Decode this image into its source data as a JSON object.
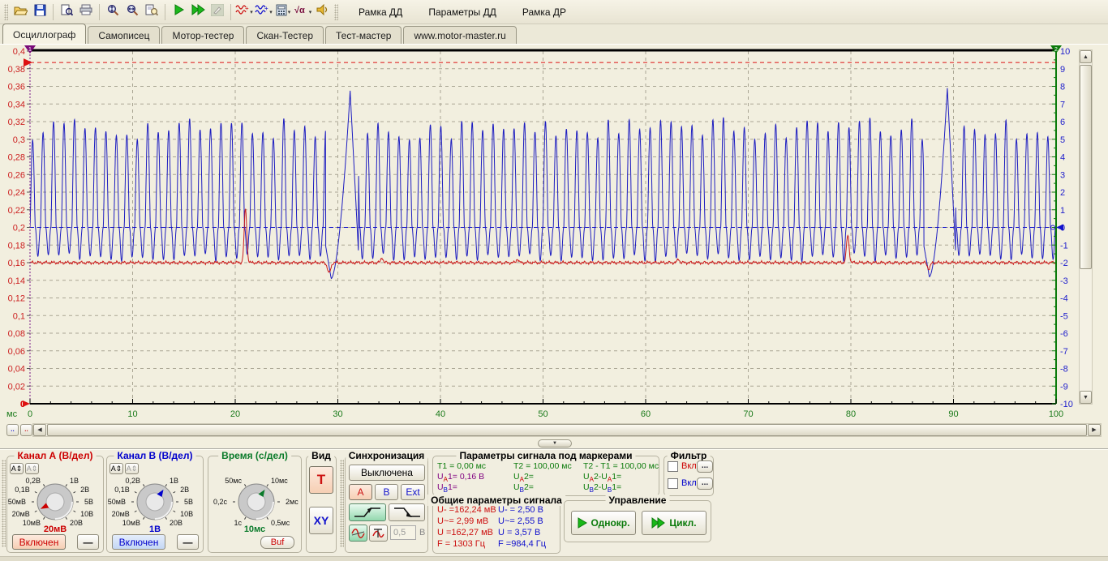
{
  "toolbar": {
    "buttons": [
      {
        "name": "open-button",
        "icon": "folder-open-icon"
      },
      {
        "name": "save-button",
        "icon": "save-icon"
      },
      {
        "sep": true
      },
      {
        "name": "print-preview-button",
        "icon": "print-preview-icon"
      },
      {
        "name": "print-button",
        "icon": "printer-icon"
      },
      {
        "sep": true
      },
      {
        "name": "zoom-vertical-button",
        "icon": "zoom-vertical-icon"
      },
      {
        "name": "zoom-horizontal-button",
        "icon": "zoom-horizontal-icon"
      },
      {
        "name": "page-search-button",
        "icon": "page-search-icon"
      },
      {
        "sep": true
      },
      {
        "name": "start-button",
        "icon": "play-icon"
      },
      {
        "name": "start-cycle-button",
        "icon": "play-double-icon"
      },
      {
        "name": "edit-button",
        "icon": "pencil-icon",
        "disabled": true
      },
      {
        "sep": true
      },
      {
        "name": "signal-a-menu-button",
        "icon": "wave-red-icon",
        "dropdown": true
      },
      {
        "name": "signal-b-menu-button",
        "icon": "wave-blue-icon",
        "dropdown": true
      },
      {
        "name": "calculator-menu-button",
        "icon": "calculator-icon",
        "dropdown": true
      },
      {
        "name": "math-menu-button",
        "icon": "sqrt-alpha-icon",
        "dropdown": true
      },
      {
        "name": "sound-button",
        "icon": "speaker-icon"
      }
    ],
    "menu_items": [
      "Рамка ДД",
      "Параметры ДД",
      "Рамка ДР"
    ]
  },
  "tabs": {
    "items": [
      "Осциллограф",
      "Самописец",
      "Мотор-тестер",
      "Скан-Тестер",
      "Тест-мастер",
      "www.motor-master.ru"
    ],
    "active_index": 0
  },
  "chart_data": {
    "type": "line",
    "x_axis": {
      "unit": "мс",
      "min": 0,
      "max": 100,
      "major_tick": 10,
      "minor_tick": 2,
      "color": "#1a7a1a",
      "labels": [
        "0",
        "10",
        "20",
        "30",
        "40",
        "50",
        "60",
        "70",
        "80",
        "90",
        "100"
      ]
    },
    "y_axis_left": {
      "min": 0,
      "max": 0.4,
      "step": 0.02,
      "color": "#cc2020",
      "labels": [
        "0,4",
        "0,38",
        "0,36",
        "0,34",
        "0,32",
        "0,3",
        "0,28",
        "0,26",
        "0,24",
        "0,22",
        "0,2",
        "0,18",
        "0,16",
        "0,14",
        "0,12",
        "0,1",
        "0,08",
        "0,06",
        "0,04",
        "0,02",
        "0"
      ]
    },
    "y_axis_right": {
      "min": -10,
      "max": 10,
      "step": 1,
      "color": "#2020cc",
      "labels": [
        "10",
        "9",
        "8",
        "7",
        "6",
        "5",
        "4",
        "3",
        "2",
        "1",
        "0",
        "-1",
        "-2",
        "-3",
        "-4",
        "-5",
        "-6",
        "-7",
        "-8",
        "-9",
        "-10"
      ]
    },
    "grid": {
      "h_step_left": 0.02,
      "v_step_ms": 10,
      "color": "#aaa694"
    },
    "ref_lines": [
      {
        "name": "trigger-level-line",
        "scale": "right",
        "y": 9.35,
        "color": "#dd1111"
      },
      {
        "name": "channel-b-zero-line",
        "scale": "right",
        "y": 0,
        "color": "#1111cc"
      }
    ],
    "markers": {
      "marker1": {
        "t": 0,
        "label": "1",
        "color": "#7a0b7a"
      },
      "marker2": {
        "t": 100,
        "label": "2",
        "color": "#0b7a0b"
      },
      "trigger_arrow": {
        "scale": "right",
        "y": 9.35,
        "color": "#dd1111"
      },
      "zero_a": {
        "scale": "left",
        "y": 0,
        "label": "0",
        "color": "#dd1111"
      },
      "zero_b": {
        "scale": "right",
        "y": 0,
        "color": "#1111cc"
      }
    },
    "series": [
      {
        "name": "channel-b",
        "color": "#1d1dc0",
        "scale": "right",
        "waveform": {
          "kind": "oscillation",
          "period_ms": 1.02,
          "peak": 5.6,
          "peak_jitter": 0.65,
          "trough": 1.45,
          "anomalies": [
            {
              "start": 28.8,
              "dip": -2.9,
              "rise_end": 31.2,
              "peak": 7.75,
              "end": 32.0
            },
            {
              "start": 87.1,
              "dip": -2.8,
              "rise_end": 89.4,
              "peak": 7.9,
              "end": 90.2
            }
          ]
        }
      },
      {
        "name": "channel-a",
        "color": "#cc1d1d",
        "scale": "right",
        "waveform": {
          "kind": "flat-noise",
          "base": -2.0,
          "noise": 0.07,
          "spikes": [
            {
              "t": 21.0,
              "v": 1.05,
              "w": 0.18
            },
            {
              "t": 79.7,
              "v": -0.45,
              "w": 0.18
            },
            {
              "t": 29.15,
              "v": -2.6,
              "w": 0.22
            },
            {
              "t": 34.3,
              "v": -1.7,
              "w": 0.15
            },
            {
              "t": 47.5,
              "v": -1.78,
              "w": 0.15
            },
            {
              "t": 63.2,
              "v": -1.8,
              "w": 0.15
            },
            {
              "t": 87.6,
              "v": -2.35,
              "w": 0.2
            }
          ]
        }
      }
    ]
  },
  "controls": {
    "channel_a": {
      "title": "Канал А (В/дел)",
      "color": "#cc0000",
      "auto_button": "А⇕",
      "knob": {
        "labels": [
          {
            "a": -150,
            "t": "10мВ"
          },
          {
            "a": -120,
            "t": "20мВ"
          },
          {
            "a": -90,
            "t": "50мВ"
          },
          {
            "a": -60,
            "t": "0,1В"
          },
          {
            "a": -30,
            "t": "0,2В"
          },
          {
            "a": 30,
            "t": "1В"
          },
          {
            "a": 60,
            "t": "2В"
          },
          {
            "a": 90,
            "t": "5В"
          },
          {
            "a": 120,
            "t": "10В"
          },
          {
            "a": 150,
            "t": "20В"
          }
        ],
        "pointer_angle": -120,
        "current": "20мВ"
      },
      "power_label": "Включен",
      "minus_label": "—"
    },
    "channel_b": {
      "title": "Канал В (В/дел)",
      "color": "#0000cc",
      "auto_button": "А⇕",
      "knob": {
        "labels": [
          {
            "a": -150,
            "t": "10мВ"
          },
          {
            "a": -120,
            "t": "20мВ"
          },
          {
            "a": -90,
            "t": "50мВ"
          },
          {
            "a": -60,
            "t": "0,1В"
          },
          {
            "a": -30,
            "t": "0,2В"
          },
          {
            "a": 30,
            "t": "1В"
          },
          {
            "a": 60,
            "t": "2В"
          },
          {
            "a": 90,
            "t": "5В"
          },
          {
            "a": 120,
            "t": "10В"
          },
          {
            "a": 150,
            "t": "20В"
          }
        ],
        "pointer_angle": 30,
        "current": "1В"
      },
      "power_label": "Включен",
      "minus_label": "—"
    },
    "time": {
      "title": "Время (с/дел)",
      "color": "#0a7a2a",
      "knob": {
        "labels": [
          {
            "a": -150,
            "t": "1с"
          },
          {
            "a": -90,
            "t": "0,2с"
          },
          {
            "a": -30,
            "t": "50мс"
          },
          {
            "a": 30,
            "t": "10мс"
          },
          {
            "a": 90,
            "t": "2мс"
          },
          {
            "a": 150,
            "t": "0,5мс"
          }
        ],
        "pointer_angle": 30,
        "current": "10мс"
      },
      "buf_label": "Buf"
    },
    "view": {
      "title": "Вид",
      "t_label": "Т",
      "xy_label": "XY"
    },
    "sync": {
      "title": "Синхронизация",
      "off_label": "Выключена",
      "sources": [
        "А",
        "В",
        "Ext"
      ],
      "active_source": 0,
      "level_value": "0,5",
      "level_unit": "В"
    },
    "marker_params": {
      "title": "Параметры сигнала под маркерами",
      "rows": [
        [
          {
            "text": "T1 = 0,00 мс",
            "color": "#0a7a0a"
          },
          {
            "text": "T2 = 100,00 мс",
            "color": "#0a7a0a"
          },
          {
            "text": "T2 - T1 = 100,00 мс",
            "color": "#0a7a0a"
          }
        ],
        [
          {
            "text": "U_A1= 0,16 В",
            "color": "#800080"
          },
          {
            "text": "U_A2=",
            "color": "#0a7a0a"
          },
          {
            "text": "U_A2-U_A1=",
            "color": "#0a7a0a"
          }
        ],
        [
          {
            "text": "U_B1=",
            "color": "#800080"
          },
          {
            "text": "U_B2=",
            "color": "#0a7a0a"
          },
          {
            "text": "U_B2-U_B1=",
            "color": "#0a7a0a"
          }
        ]
      ],
      "sub_a_color": "#cc0000",
      "sub_b_color": "#0000cc"
    },
    "filter": {
      "title": "Фильтр",
      "rows": [
        {
          "label": "Вкл",
          "color": "#cc0000",
          "more": "..."
        },
        {
          "label": "Вкл",
          "color": "#0000cc",
          "more": "..."
        }
      ]
    },
    "general_params": {
      "title": "Общие параметры сигнала",
      "col_a": {
        "color": "#cc1111",
        "lines": [
          "U- =162,24 мВ",
          "U~= 2,99 мВ",
          "U =162,27 мВ",
          "F = 1303 Гц"
        ]
      },
      "col_b": {
        "color": "#1111cc",
        "lines": [
          "U- = 2,50 В",
          "U~= 2,55 В",
          "U = 3,57 В",
          "F =984,4 Гц"
        ]
      }
    },
    "control": {
      "title": "Управление",
      "single_label": "Однокр.",
      "cycle_label": "Цикл.",
      "color": "#0a7a0a"
    }
  }
}
